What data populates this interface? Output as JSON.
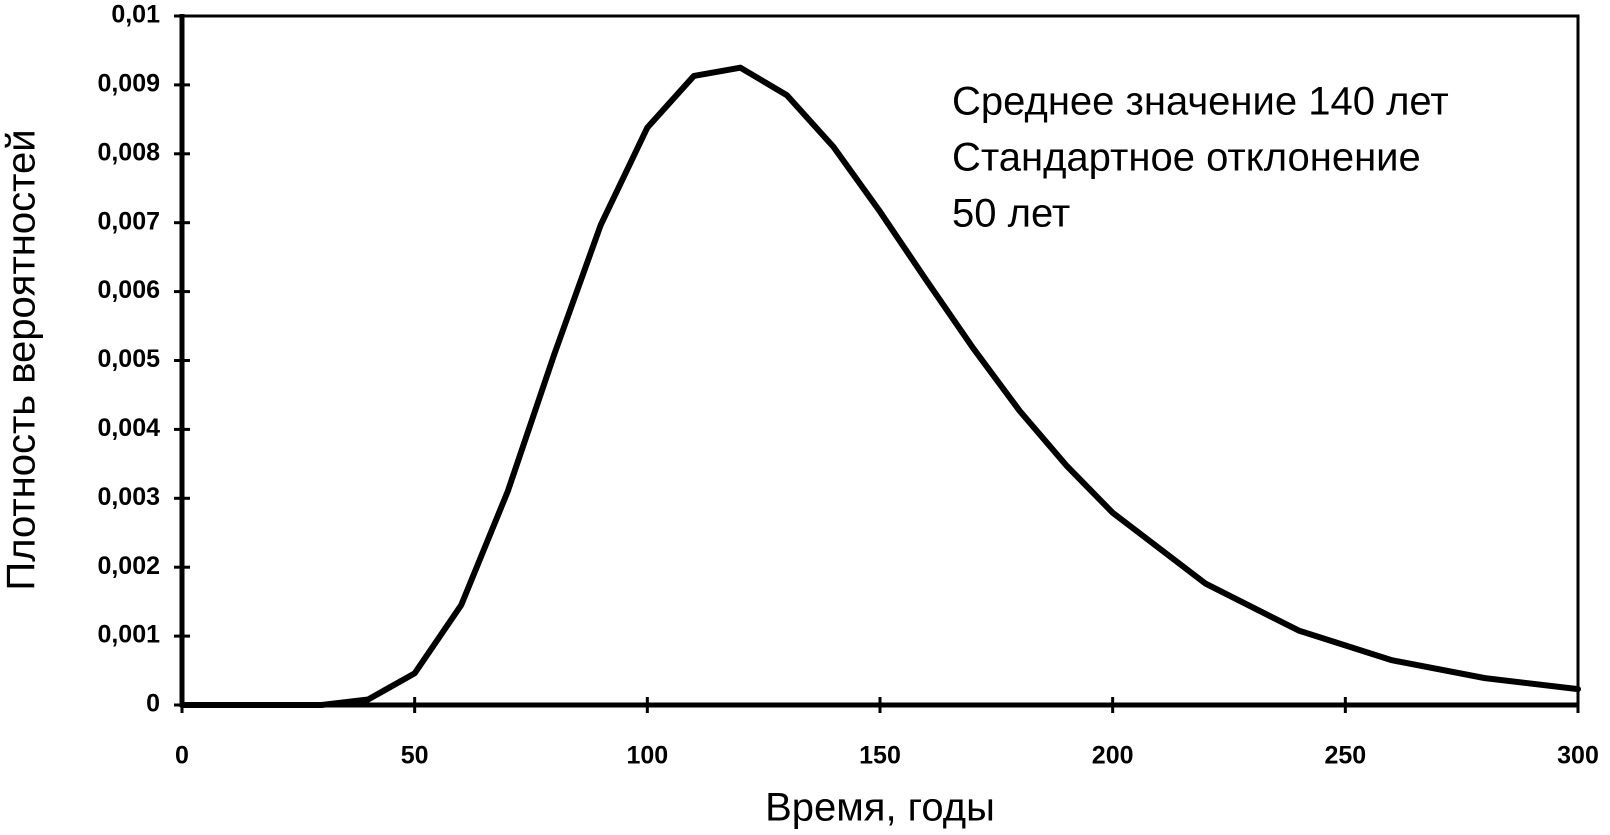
{
  "chart_data": {
    "type": "line",
    "x_label": "Время, годы",
    "y_label": "Плотность вероятностей",
    "annotation": [
      "Среднее значение 140 лет",
      "Стандартное отклонение",
      "50 лет"
    ],
    "x": [
      0,
      10,
      20,
      30,
      40,
      50,
      60,
      70,
      80,
      90,
      100,
      110,
      120,
      130,
      140,
      150,
      160,
      170,
      180,
      190,
      200,
      220,
      240,
      260,
      280,
      300
    ],
    "series": [
      {
        "color": "#000000",
        "values": [
          0,
          0,
          0,
          0,
          8e-05,
          0.00046,
          0.00145,
          0.0031,
          0.00509,
          0.00697,
          0.00838,
          0.00913,
          0.00925,
          0.00885,
          0.0081,
          0.00716,
          0.00616,
          0.00518,
          0.00427,
          0.00348,
          0.00279,
          0.00176,
          0.00108,
          0.00065,
          0.00039,
          0.00023
        ]
      }
    ],
    "xlim": [
      0,
      300
    ],
    "xticks": [
      0,
      50,
      100,
      150,
      200,
      250,
      300
    ],
    "ylim": [
      0,
      0.01
    ],
    "yticks": [
      0,
      {
        "value": 0.001,
        "label": "0,001"
      },
      {
        "value": 0.002,
        "label": "0,002"
      },
      {
        "value": 0.003,
        "label": "0,003"
      },
      {
        "value": 0.004,
        "label": "0,004"
      },
      {
        "value": 0.005,
        "label": "0,005"
      },
      {
        "value": 0.006,
        "label": "0,006"
      },
      {
        "value": 0.007,
        "label": "0,007"
      },
      {
        "value": 0.008,
        "label": "0,008"
      },
      {
        "value": 0.009,
        "label": "0,009"
      },
      {
        "value": 0.01,
        "label": "0,01"
      }
    ],
    "grid": false
  }
}
